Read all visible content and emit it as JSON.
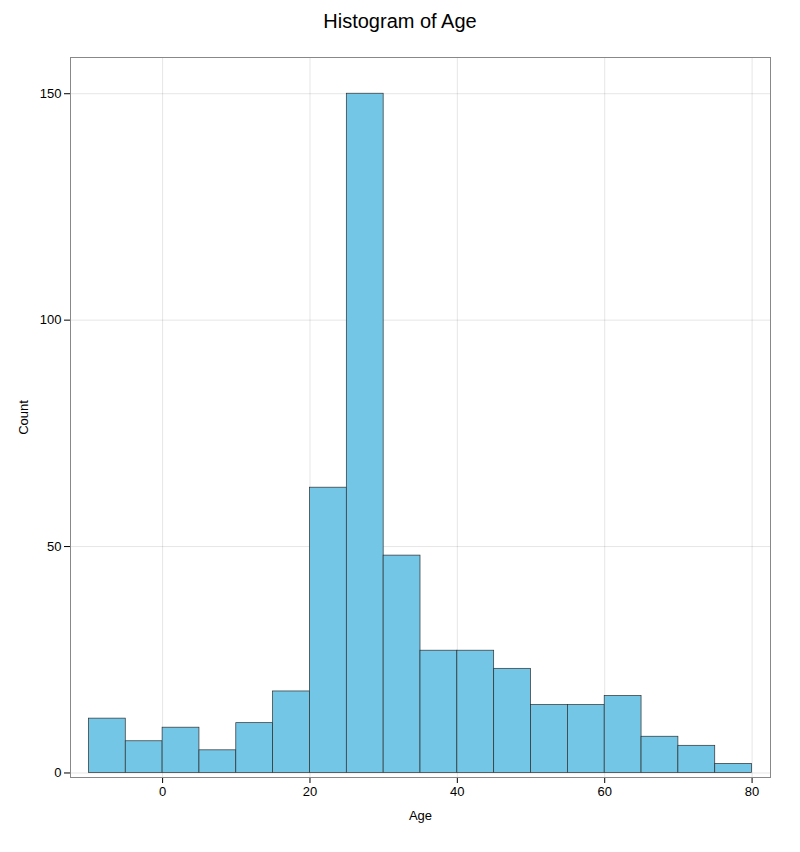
{
  "chart_data": {
    "type": "histogram",
    "title": "Histogram of Age",
    "xlabel": "Age",
    "ylabel": "Count",
    "bins": [
      -10,
      -5,
      0,
      5,
      10,
      15,
      20,
      25,
      30,
      35,
      40,
      45,
      50,
      55,
      60,
      65,
      70,
      75,
      80
    ],
    "counts": [
      12,
      7,
      10,
      5,
      11,
      18,
      63,
      150,
      48,
      27,
      27,
      23,
      15,
      15,
      17,
      8,
      6,
      2
    ],
    "color": "#74C6E6",
    "xlim": [
      -12.5,
      82.5
    ],
    "ylim": [
      -1,
      158
    ],
    "xticks": [
      0,
      20,
      40,
      60,
      80
    ],
    "yticks": [
      0,
      50,
      100,
      150
    ],
    "grid": true
  }
}
